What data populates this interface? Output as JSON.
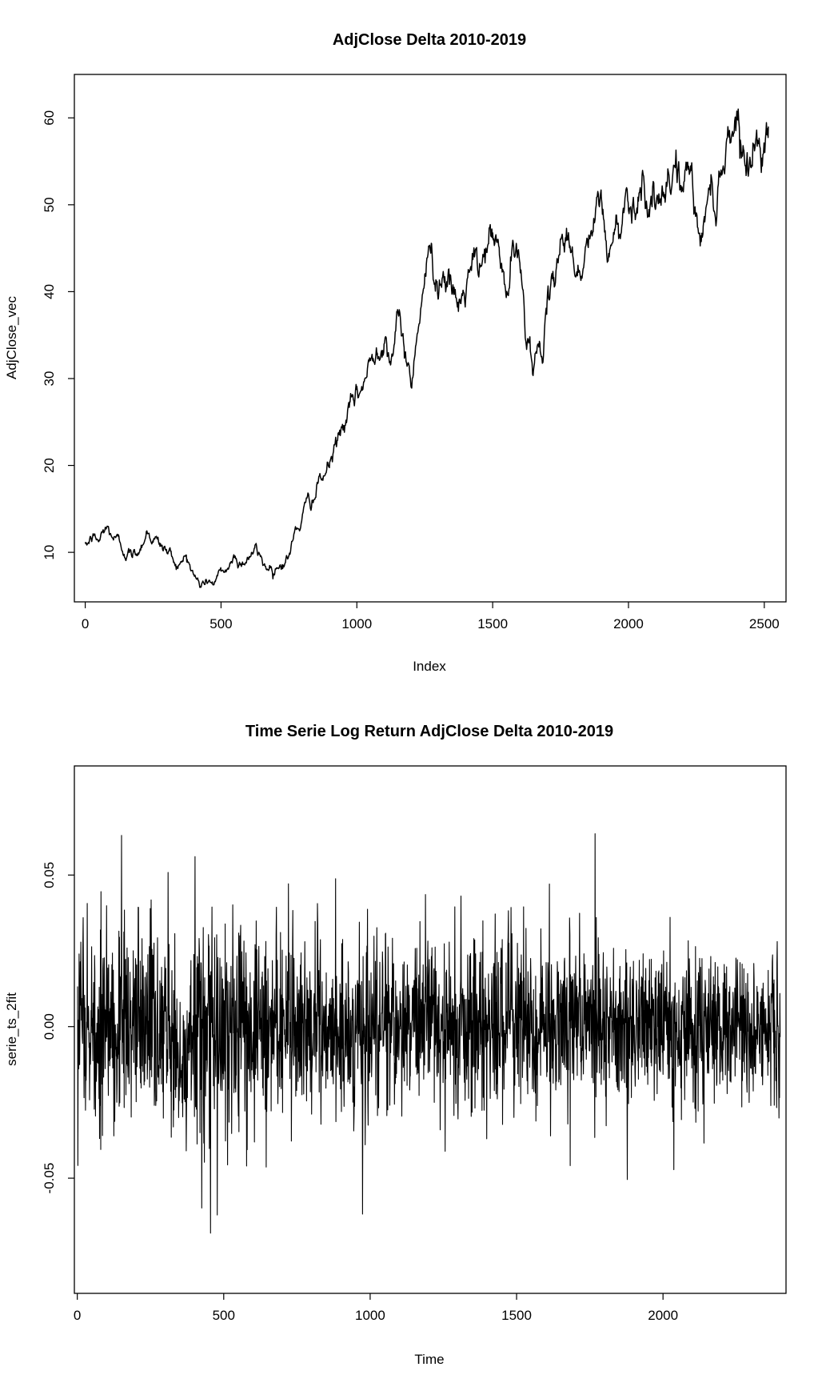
{
  "chart_data": [
    {
      "type": "line",
      "title": "AdjClose Delta 2010-2019",
      "xlabel": "Index",
      "ylabel": "AdjClose_vec",
      "xlim": [
        -40,
        2580
      ],
      "ylim": [
        4.3,
        65.0
      ],
      "xticks": [
        0,
        500,
        1000,
        1500,
        2000,
        2500
      ],
      "yticks": [
        10,
        20,
        30,
        40,
        50,
        60
      ],
      "grid": false,
      "legend": "none",
      "x": [
        0,
        25,
        50,
        75,
        100,
        125,
        150,
        175,
        200,
        225,
        250,
        275,
        300,
        325,
        350,
        375,
        400,
        425,
        450,
        475,
        500,
        525,
        550,
        575,
        600,
        625,
        650,
        675,
        700,
        725,
        750,
        775,
        800,
        825,
        850,
        875,
        900,
        925,
        950,
        975,
        1000,
        1025,
        1050,
        1075,
        1100,
        1125,
        1150,
        1175,
        1200,
        1225,
        1250,
        1275,
        1300,
        1325,
        1350,
        1375,
        1400,
        1425,
        1450,
        1475,
        1500,
        1525,
        1550,
        1575,
        1600,
        1625,
        1650,
        1675,
        1700,
        1725,
        1750,
        1775,
        1800,
        1825,
        1850,
        1875,
        1900,
        1925,
        1950,
        1975,
        2000,
        2025,
        2050,
        2075,
        2100,
        2125,
        2150,
        2175,
        2200,
        2225,
        2250,
        2275,
        2300,
        2325,
        2350,
        2375,
        2400,
        2425,
        2450,
        2475,
        2500,
        2515
      ],
      "y": [
        10.5,
        11.6,
        11.2,
        12.8,
        12.0,
        11.0,
        10.2,
        9.5,
        10.5,
        12.5,
        11.8,
        10.8,
        10.2,
        9.2,
        8.5,
        9.8,
        7.2,
        6.2,
        6.8,
        6.5,
        7.5,
        8.2,
        9.5,
        8.8,
        9.6,
        10.2,
        9.0,
        8.2,
        8.6,
        8.8,
        9.6,
        12.5,
        14.0,
        16.0,
        17.0,
        18.5,
        20.0,
        22.5,
        24.5,
        26.0,
        27.5,
        29.5,
        31.5,
        34.0,
        35.5,
        33.0,
        36.0,
        34.0,
        29.0,
        37.0,
        42.0,
        44.5,
        41.5,
        43.0,
        39.0,
        38.0,
        40.0,
        43.0,
        41.5,
        45.0,
        46.5,
        44.0,
        39.0,
        44.5,
        42.5,
        36.0,
        32.0,
        33.5,
        37.0,
        40.0,
        47.0,
        46.0,
        44.0,
        42.0,
        45.5,
        47.5,
        50.5,
        44.0,
        46.5,
        48.5,
        52.0,
        50.0,
        53.5,
        51.0,
        50.0,
        48.5,
        52.0,
        55.5,
        51.5,
        54.5,
        48.0,
        46.0,
        53.0,
        51.0,
        56.0,
        58.5,
        61.0,
        56.5,
        55.0,
        57.5,
        56.0,
        59.0
      ]
    },
    {
      "type": "line",
      "title": "Time Serie Log Return AdjClose Delta 2010-2019",
      "xlabel": "Time",
      "ylabel": "serie_ts_2fit",
      "xlim": [
        -10,
        2420
      ],
      "ylim": [
        -0.088,
        0.086
      ],
      "xticks": [
        0,
        500,
        1000,
        1500,
        2000
      ],
      "yticks": [
        -0.05,
        0.0,
        0.05
      ],
      "ytick_labels": [
        "-0.05",
        "0.00",
        "0.05"
      ],
      "grid": false,
      "legend": "none",
      "x_range": [
        1,
        2400
      ],
      "y_sd": 0.0175,
      "y_range": [
        -0.081,
        0.079
      ]
    }
  ]
}
